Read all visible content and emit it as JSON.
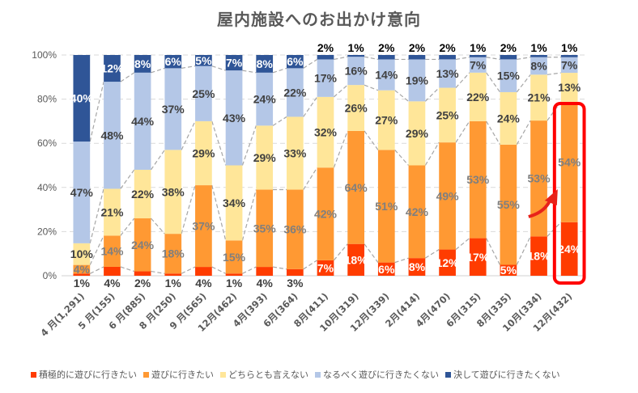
{
  "chart_data": {
    "type": "bar",
    "stacked": true,
    "percent_stacked": true,
    "title": "屋内施設へのお出かけ意向",
    "xlabel": "",
    "ylabel": "",
    "ylim": [
      0,
      100
    ],
    "yticks": [
      "0%",
      "20%",
      "40%",
      "60%",
      "80%",
      "100%"
    ],
    "grid": true,
    "legend_position": "bottom",
    "categories": [
      "4 月(1,291)",
      "5 月(155)",
      "6 月(885)",
      "8 月(250)",
      "9 月(565)",
      "12月(462)",
      "4月(393)",
      "6月(364)",
      "8月(411)",
      "10月(319)",
      "12月(339)",
      "2月(414)",
      "4月(470)",
      "6月(315)",
      "8月(335)",
      "10月(334)",
      "12月(432)"
    ],
    "series": [
      {
        "name": "積極的に遊びに行きたい",
        "color": "#FF3C00",
        "values": [
          1,
          4,
          2,
          1,
          4,
          1,
          4,
          3,
          7,
          18,
          6,
          8,
          12,
          17,
          5,
          18,
          24
        ]
      },
      {
        "name": "遊びに行きたい",
        "color": "#FF9933",
        "values": [
          4,
          14,
          24,
          18,
          37,
          15,
          35,
          36,
          42,
          64,
          51,
          42,
          49,
          53,
          55,
          53,
          54
        ]
      },
      {
        "name": "どちらとも言えない",
        "color": "#FFE699",
        "values": [
          10,
          21,
          22,
          38,
          29,
          34,
          29,
          33,
          32,
          26,
          27,
          29,
          25,
          22,
          24,
          21,
          13
        ]
      },
      {
        "name": "なるべく遊びに行きたくない",
        "color": "#B4C7E7",
        "values": [
          47,
          48,
          44,
          37,
          25,
          43,
          24,
          22,
          17,
          16,
          14,
          19,
          13,
          7,
          15,
          8,
          7
        ]
      },
      {
        "name": "決して遊びに行きたくない",
        "color": "#2F5597",
        "values": [
          40,
          12,
          8,
          6,
          5,
          7,
          8,
          6,
          2,
          1,
          2,
          2,
          2,
          1,
          2,
          1,
          1
        ]
      }
    ],
    "annotations": [
      {
        "type": "highlight-box",
        "target_category": "12月(432)",
        "color": "#FF0000"
      },
      {
        "type": "arrow",
        "target_category": "12月(432)",
        "color": "#FF0000"
      }
    ]
  }
}
